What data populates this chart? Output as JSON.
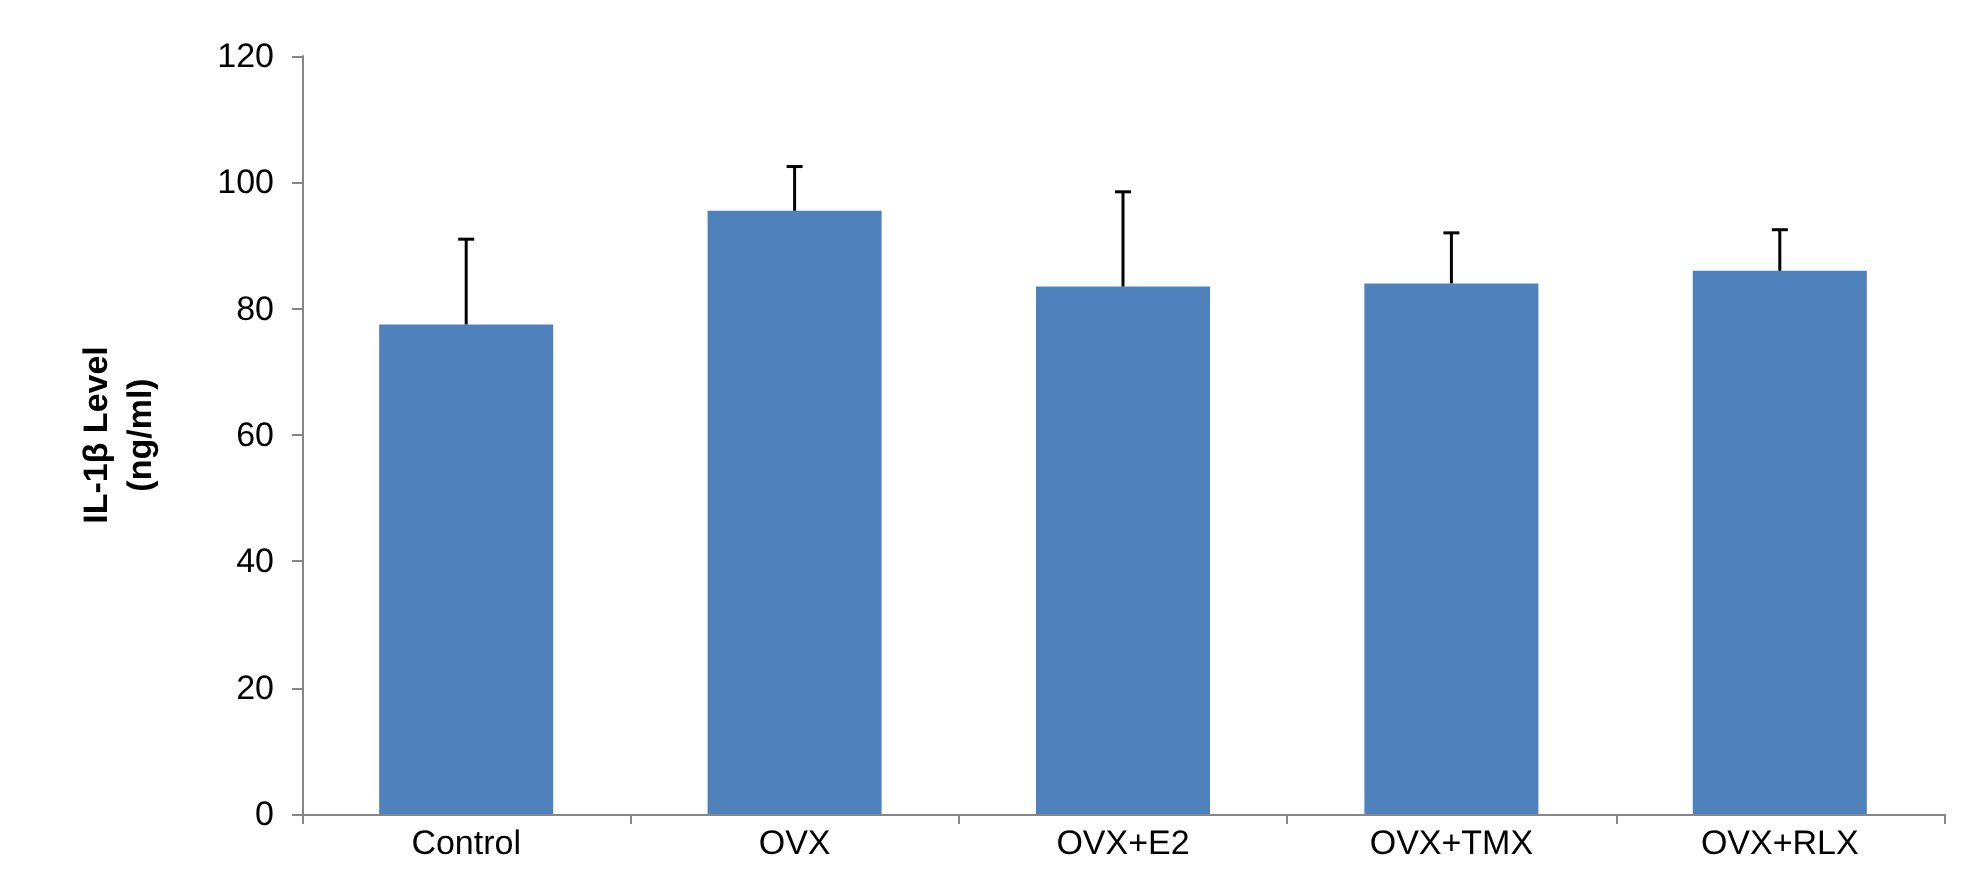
{
  "chart_data": {
    "type": "bar",
    "ylabel": "IL-1β Level\n(ng/ml)",
    "categories": [
      "Control",
      "OVX",
      "OVX+E2",
      "OVX+TMX",
      "OVX+RLX"
    ],
    "values": [
      77.5,
      95.5,
      83.5,
      84,
      86
    ],
    "errors": [
      [
        77.5,
        91
      ],
      [
        95.5,
        102.5
      ],
      [
        83.5,
        98.5
      ],
      [
        84,
        92
      ],
      [
        86,
        92.5
      ]
    ],
    "color": "#4f81bd",
    "ylim": [
      0,
      120
    ],
    "yticks": [
      0,
      20,
      40,
      60,
      80,
      100,
      120
    ],
    "grid": false
  }
}
